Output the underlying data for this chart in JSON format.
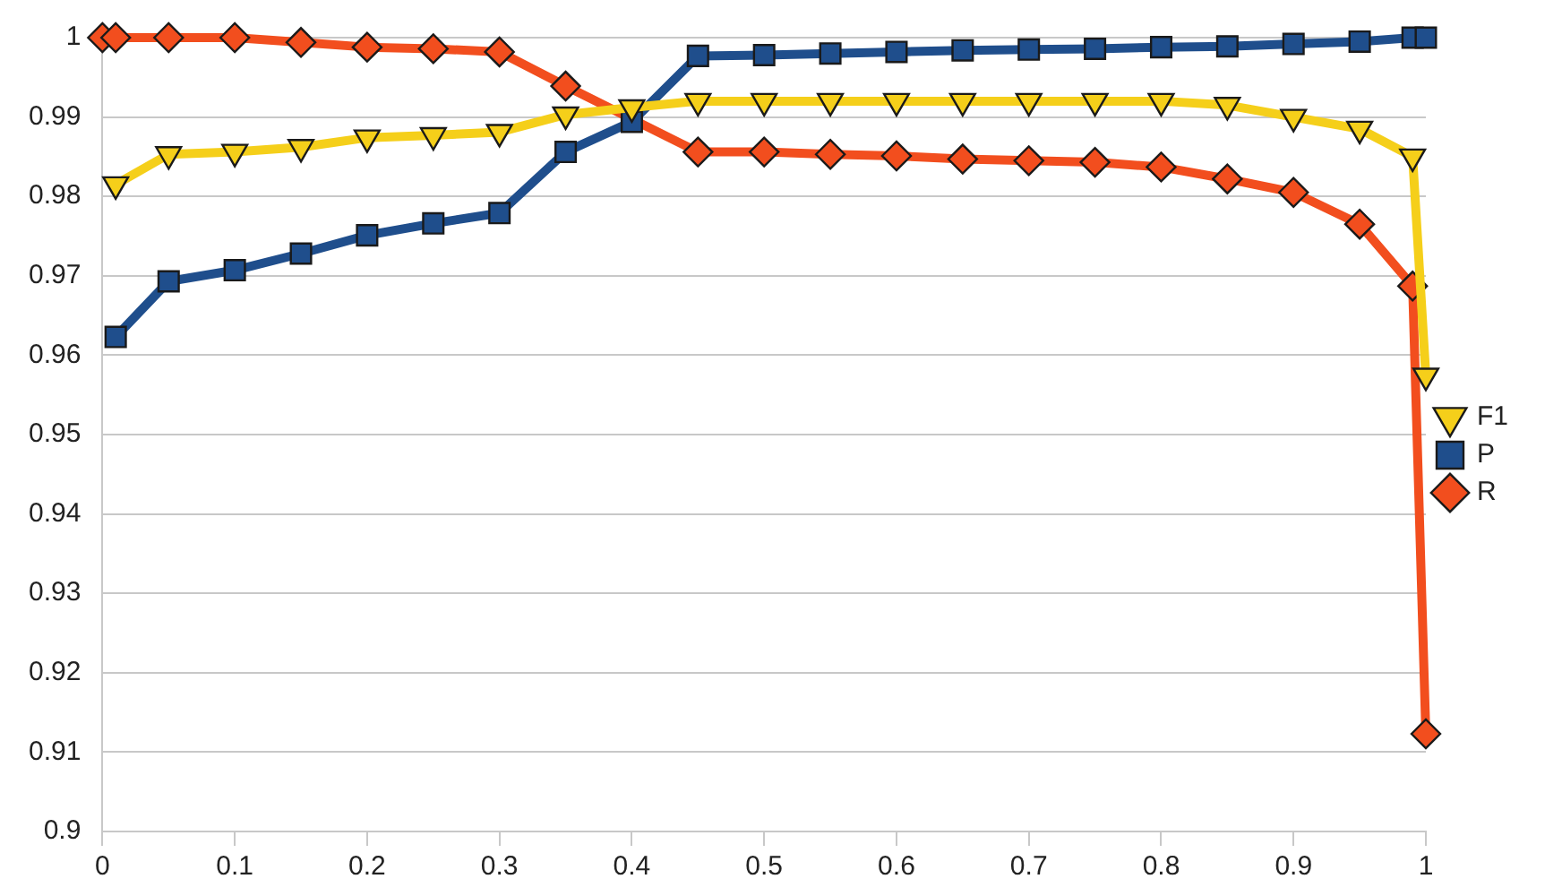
{
  "chart_data": {
    "type": "line",
    "x": [
      0,
      0.01,
      0.05,
      0.1,
      0.15,
      0.2,
      0.25,
      0.3,
      0.35,
      0.4,
      0.45,
      0.5,
      0.55,
      0.6,
      0.65,
      0.7,
      0.75,
      0.8,
      0.85,
      0.9,
      0.95,
      0.99,
      1
    ],
    "series": [
      {
        "name": "F1",
        "color": "#f5cf1a",
        "marker": "triangle",
        "values": [
          null,
          0.9815,
          0.9853,
          0.9856,
          0.9862,
          0.9874,
          0.9877,
          0.9881,
          0.9903,
          0.9912,
          0.992,
          0.992,
          0.992,
          0.992,
          0.992,
          0.992,
          0.992,
          0.992,
          0.9915,
          0.99,
          0.9885,
          0.985,
          0.9574
        ]
      },
      {
        "name": "P",
        "color": "#1f4e8c",
        "marker": "square",
        "values": [
          null,
          0.9623,
          0.9693,
          0.9707,
          0.9728,
          0.9751,
          0.9766,
          0.9779,
          0.9856,
          0.9894,
          0.9977,
          0.9978,
          0.998,
          0.9982,
          0.9984,
          0.9985,
          0.9986,
          0.9988,
          0.9989,
          0.9992,
          0.9995,
          1,
          1
        ]
      },
      {
        "name": "R",
        "color": "#f24e1e",
        "marker": "diamond",
        "values": [
          1,
          1,
          1,
          1,
          0.9994,
          0.9988,
          0.9986,
          0.9982,
          0.9939,
          null,
          0.9856,
          0.9856,
          0.9853,
          0.9851,
          0.9847,
          0.9845,
          0.9843,
          0.9837,
          0.9822,
          0.9805,
          0.9765,
          0.9687,
          0.9123
        ]
      }
    ],
    "xlim": [
      0,
      1
    ],
    "xticks": [
      0,
      0.1,
      0.2,
      0.3,
      0.4,
      0.5,
      0.6,
      0.7,
      0.8,
      0.9,
      1
    ],
    "ylim": [
      0.9,
      1
    ],
    "yticks": [
      0.9,
      0.91,
      0.92,
      0.93,
      0.94,
      0.95,
      0.96,
      0.97,
      0.98,
      0.99,
      1
    ],
    "grid": "y",
    "legend": "right",
    "line_style": "solid"
  }
}
